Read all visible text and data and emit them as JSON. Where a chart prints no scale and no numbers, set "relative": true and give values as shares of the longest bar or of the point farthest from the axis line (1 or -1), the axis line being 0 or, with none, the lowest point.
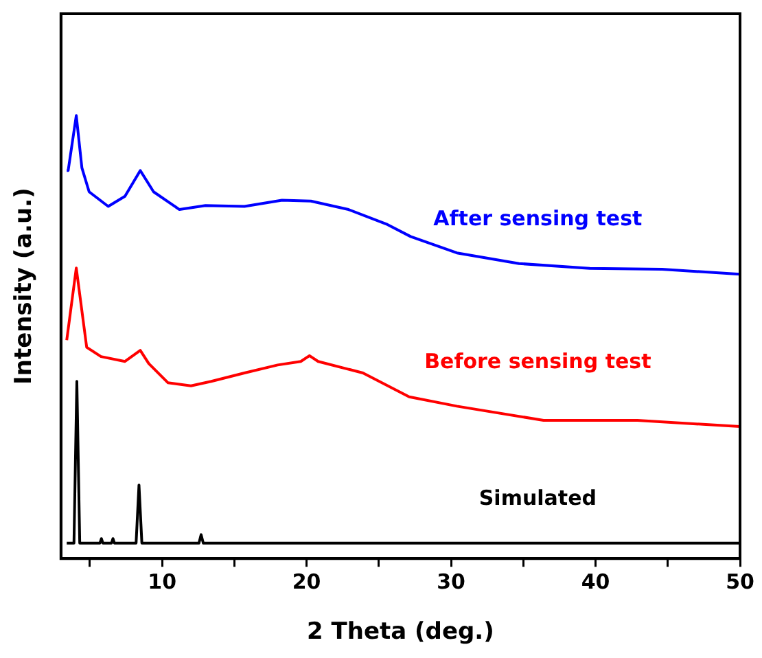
{
  "chart_data": {
    "type": "line",
    "xlabel": "2 Theta (deg.)",
    "ylabel": "Intensity (a.u.)",
    "relative": true,
    "xlim": [
      3,
      50
    ],
    "xticks": [
      {
        "value": 5,
        "label": null
      },
      10,
      {
        "value": 15,
        "label": null
      },
      20,
      {
        "value": 25,
        "label": null
      },
      30,
      {
        "value": 35,
        "label": null
      },
      40,
      {
        "value": 45,
        "label": null
      },
      50
    ],
    "grid": false,
    "legend": false,
    "marker": "none",
    "line_style": "solid",
    "series": [
      {
        "name": "After sensing test",
        "color": "#0000ff",
        "x": [
          3.4,
          3.5,
          4.06,
          4.45,
          4.95,
          6.27,
          7.43,
          8.49,
          9.41,
          11.2,
          13.0,
          15.7,
          18.3,
          20.3,
          22.9,
          25.6,
          27.2,
          30.4,
          34.7,
          39.6,
          44.6,
          50
        ],
        "values": [
          0.876,
          0.876,
          1.0,
          0.882,
          0.828,
          0.795,
          0.818,
          0.876,
          0.828,
          0.788,
          0.797,
          0.795,
          0.809,
          0.807,
          0.788,
          0.754,
          0.727,
          0.69,
          0.666,
          0.655,
          0.653,
          0.642
        ]
      },
      {
        "name": "Before sensing test",
        "color": "#ff0000",
        "x": [
          3.4,
          4.06,
          4.78,
          5.77,
          7.43,
          8.49,
          9.08,
          10.4,
          12.0,
          13.4,
          15.7,
          18.0,
          19.6,
          20.2,
          20.8,
          23.9,
          27.1,
          30.4,
          36.4,
          42.9,
          50
        ],
        "values": [
          0.493,
          0.656,
          0.477,
          0.456,
          0.445,
          0.47,
          0.44,
          0.397,
          0.39,
          0.4,
          0.419,
          0.437,
          0.445,
          0.458,
          0.445,
          0.419,
          0.365,
          0.344,
          0.312,
          0.312,
          0.298
        ]
      },
      {
        "name": "Simulated",
        "color": "#000000",
        "x": [
          3.4,
          3.9,
          4.1,
          4.3,
          5.7,
          5.8,
          5.9,
          6.5,
          6.6,
          6.7,
          8.2,
          8.4,
          8.6,
          12.55,
          12.7,
          12.85,
          50
        ],
        "values": [
          0.035,
          0.035,
          0.4,
          0.035,
          0.035,
          0.045,
          0.035,
          0.035,
          0.045,
          0.035,
          0.035,
          0.166,
          0.035,
          0.035,
          0.054,
          0.035,
          0.035
        ]
      }
    ]
  }
}
